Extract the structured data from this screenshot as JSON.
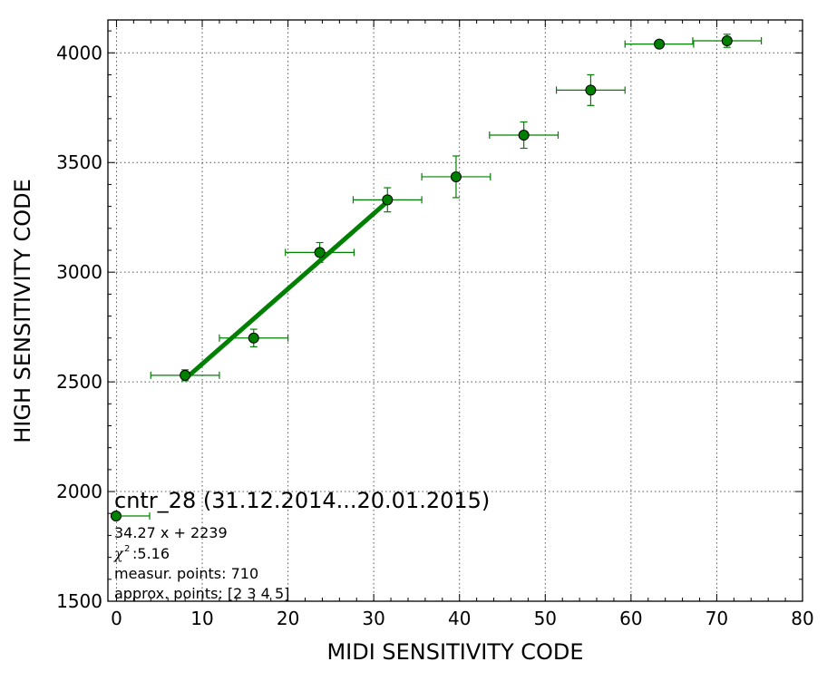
{
  "chart_data": {
    "type": "scatter",
    "xlabel": "MIDI SENSITIVITY CODE",
    "ylabel": "HIGH SENSITIVITY CODE",
    "xlim": [
      -1,
      80
    ],
    "ylim": [
      1500,
      4150
    ],
    "x_ticks": [
      "0",
      "10",
      "20",
      "30",
      "40",
      "50",
      "60",
      "70",
      "80"
    ],
    "y_ticks": [
      "1500",
      "2000",
      "2500",
      "3000",
      "3500",
      "4000"
    ],
    "grid": true,
    "color": "#008000",
    "points": [
      {
        "x": 8,
        "y": 2530,
        "xerr": 4,
        "yerr": 25
      },
      {
        "x": 16,
        "y": 2700,
        "xerr": 4,
        "yerr": 40
      },
      {
        "x": 23.7,
        "y": 3090,
        "xerr": 4,
        "yerr": 45
      },
      {
        "x": 31.6,
        "y": 3330,
        "xerr": 4,
        "yerr": 55
      },
      {
        "x": 39.6,
        "y": 3435,
        "xerr": 4,
        "yerr": 95
      },
      {
        "x": 47.5,
        "y": 3625,
        "xerr": 4,
        "yerr": 60
      },
      {
        "x": 55.3,
        "y": 3830,
        "xerr": 4,
        "yerr": 70
      },
      {
        "x": 63.3,
        "y": 4040,
        "xerr": 4,
        "yerr": 10
      },
      {
        "x": 71.2,
        "y": 4055,
        "xerr": 4,
        "yerr": 30
      }
    ],
    "fit_line": {
      "slope": 34.27,
      "intercept": 2239,
      "x_range": [
        8,
        31.6
      ]
    },
    "legend": {
      "title": "cntr_28 (31.12.2014...20.01.2015)",
      "equation": "34.27 x + 2239",
      "chi2": " :5.16",
      "measur": "measur. points: 710",
      "approx": "approx. points: [2 3 4 5]"
    }
  }
}
